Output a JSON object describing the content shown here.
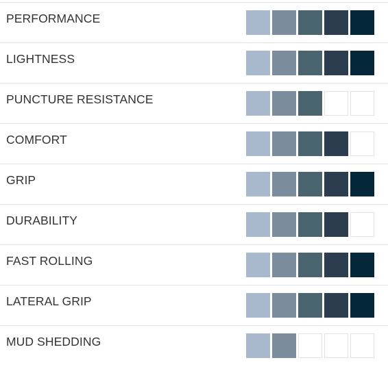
{
  "palette": [
    "#a9b9cd",
    "#7b8c9c",
    "#4a6470",
    "#2b3d4f",
    "#04283a"
  ],
  "max_level": 5,
  "ratings": [
    {
      "label": "PERFORMANCE",
      "level": 5
    },
    {
      "label": "LIGHTNESS",
      "level": 5
    },
    {
      "label": "PUNCTURE RESISTANCE",
      "level": 3
    },
    {
      "label": "COMFORT",
      "level": 4
    },
    {
      "label": "GRIP",
      "level": 5
    },
    {
      "label": "DURABILITY",
      "level": 4
    },
    {
      "label": "FAST ROLLING",
      "level": 5
    },
    {
      "label": "LATERAL GRIP",
      "level": 5
    },
    {
      "label": "MUD SHEDDING",
      "level": 2
    }
  ]
}
